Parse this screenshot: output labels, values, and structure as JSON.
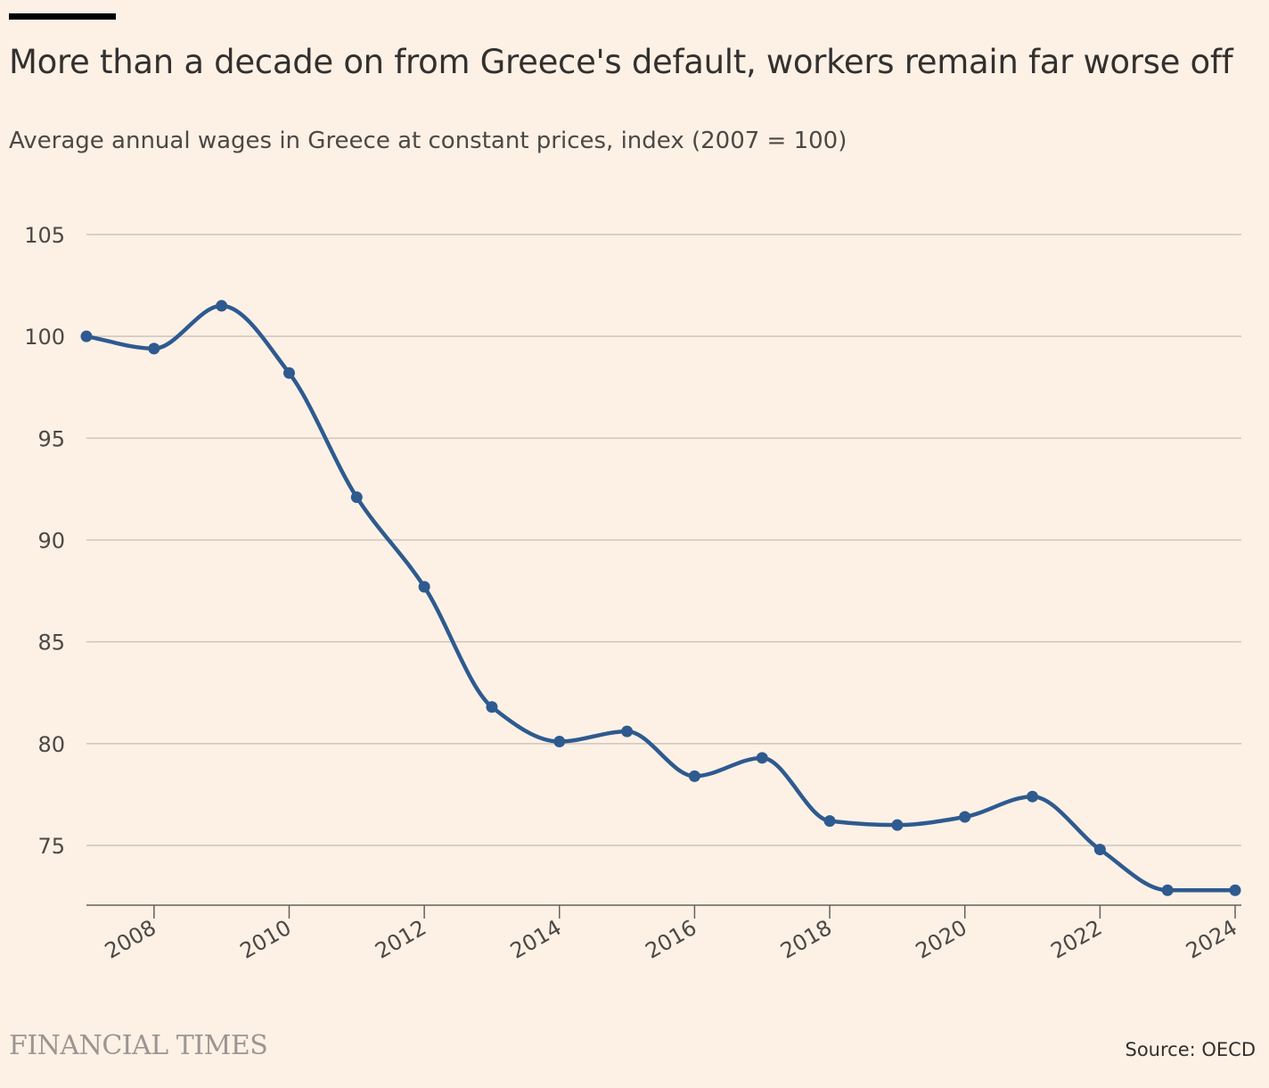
{
  "header": {
    "title": "More than a decade on from Greece's default, workers remain far worse off",
    "subtitle": "Average annual wages in Greece at constant prices, index (2007 = 100)"
  },
  "footer": {
    "brand": "FINANCIAL TIMES",
    "source": "Source: OECD"
  },
  "colors": {
    "line": "#2e5a8f",
    "grid": "#cdc5bd",
    "background": "#fdf1e6",
    "accent_bar": "#000000"
  },
  "chart_data": {
    "type": "line",
    "title": "More than a decade on from Greece's default, workers remain far worse off",
    "subtitle": "Average annual wages in Greece at constant prices, index (2007 = 100)",
    "x": [
      2007,
      2008,
      2009,
      2010,
      2011,
      2012,
      2013,
      2014,
      2015,
      2016,
      2017,
      2018,
      2019,
      2020,
      2021,
      2022,
      2023,
      2024
    ],
    "series": [
      {
        "values": [
          100.0,
          99.4,
          101.5,
          98.2,
          92.1,
          87.7,
          81.8,
          80.1,
          80.6,
          78.4,
          79.3,
          76.2,
          76.0,
          76.4,
          77.4,
          74.8,
          72.8,
          72.8
        ]
      }
    ],
    "xlim": [
      2007,
      2024
    ],
    "ylim": [
      72.2,
      105
    ],
    "yticks": [
      75,
      80,
      85,
      90,
      95,
      100,
      105
    ],
    "xticks": [
      2008,
      2010,
      2012,
      2014,
      2016,
      2018,
      2020,
      2022,
      2024
    ],
    "grid": true,
    "line_shape": "smooth",
    "markers": true,
    "legend": "none"
  }
}
